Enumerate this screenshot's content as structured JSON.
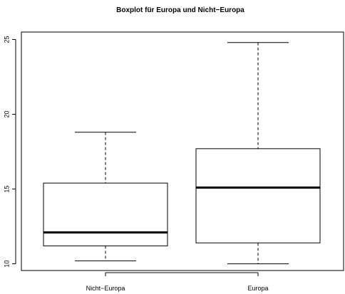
{
  "chart_data": {
    "type": "boxplot",
    "title": "Boxplot für Europa und Nicht−Europa",
    "xlabel": "",
    "ylabel": "",
    "ylim": [
      9.6,
      25.5
    ],
    "yticks": [
      10,
      15,
      20,
      25
    ],
    "ytick_labels": [
      "10",
      "15",
      "20",
      "25"
    ],
    "grid": false,
    "categories": [
      "Nicht−Europa",
      "Europa"
    ],
    "boxes": [
      {
        "category": "Nicht−Europa",
        "min": 10.2,
        "q1": 11.2,
        "median": 12.1,
        "q3": 15.4,
        "max": 18.8
      },
      {
        "category": "Europa",
        "min": 10.0,
        "q1": 11.4,
        "median": 15.1,
        "q3": 17.7,
        "max": 24.8
      }
    ]
  }
}
